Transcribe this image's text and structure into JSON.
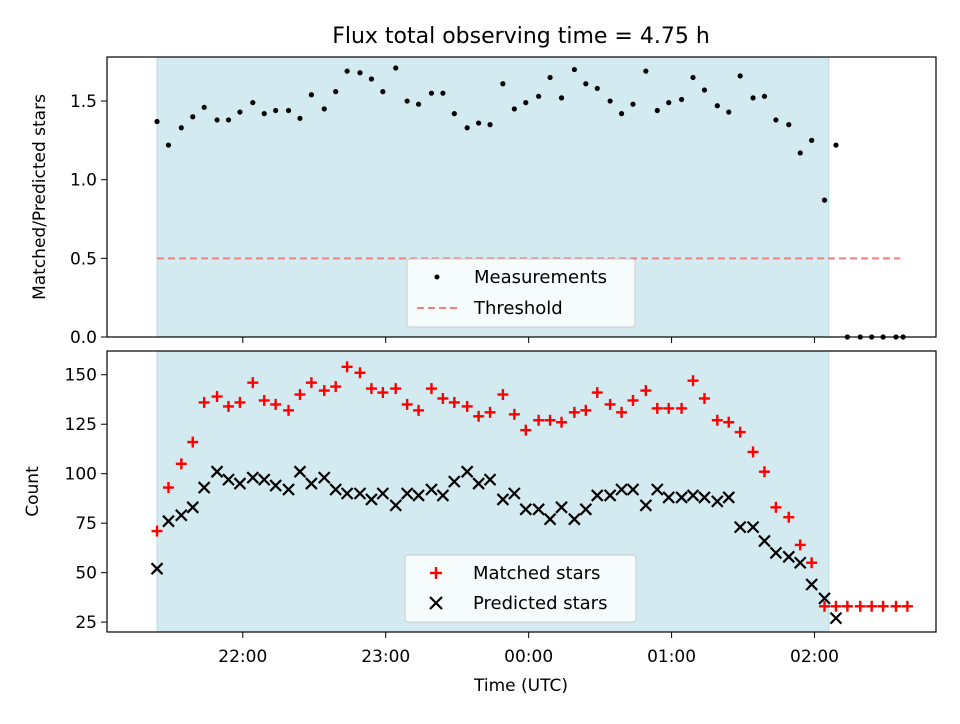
{
  "chart_data": {
    "type": "scatter",
    "title": "Flux total observing time = 4.75 h",
    "xlabel": "Time (UTC)",
    "x_tick_labels": [
      "22:00",
      "23:00",
      "00:00",
      "01:00",
      "02:00"
    ],
    "x_tick_hours": [
      22,
      23,
      24,
      25,
      26
    ],
    "x_range_hours": [
      21.05,
      26.85
    ],
    "shaded_interval_hours": [
      21.4,
      26.1
    ],
    "colors": {
      "shade": "#d3eaf0",
      "shade_edge": "#b9dbe4",
      "threshold": "#f08080",
      "matched": "#ff0000",
      "predicted": "#000000",
      "measurements": "#000000"
    },
    "top_panel": {
      "ylabel": "Matched/Predicted stars",
      "ylim": [
        0,
        1.78
      ],
      "y_ticks": [
        0.0,
        0.5,
        1.0,
        1.5
      ],
      "y_tick_labels": [
        "0.0",
        "0.5",
        "1.0",
        "1.5"
      ],
      "legend": {
        "placement": "lower-center",
        "measurements_label": "Measurements",
        "threshold_label": "Threshold"
      },
      "threshold": {
        "y": 0.5,
        "x": [
          21.4,
          26.6
        ]
      },
      "measurements": [
        [
          21.4,
          1.37
        ],
        [
          21.48,
          1.22
        ],
        [
          21.57,
          1.33
        ],
        [
          21.65,
          1.4
        ],
        [
          21.73,
          1.46
        ],
        [
          21.82,
          1.38
        ],
        [
          21.9,
          1.38
        ],
        [
          21.98,
          1.43
        ],
        [
          22.07,
          1.49
        ],
        [
          22.15,
          1.42
        ],
        [
          22.23,
          1.44
        ],
        [
          22.32,
          1.44
        ],
        [
          22.4,
          1.39
        ],
        [
          22.48,
          1.54
        ],
        [
          22.57,
          1.45
        ],
        [
          22.65,
          1.56
        ],
        [
          22.73,
          1.69
        ],
        [
          22.82,
          1.68
        ],
        [
          22.9,
          1.64
        ],
        [
          22.98,
          1.56
        ],
        [
          23.07,
          1.71
        ],
        [
          23.15,
          1.5
        ],
        [
          23.23,
          1.48
        ],
        [
          23.32,
          1.55
        ],
        [
          23.4,
          1.55
        ],
        [
          23.48,
          1.42
        ],
        [
          23.57,
          1.33
        ],
        [
          23.65,
          1.36
        ],
        [
          23.73,
          1.35
        ],
        [
          23.82,
          1.61
        ],
        [
          23.9,
          1.45
        ],
        [
          23.98,
          1.49
        ],
        [
          24.07,
          1.53
        ],
        [
          24.15,
          1.65
        ],
        [
          24.23,
          1.52
        ],
        [
          24.32,
          1.7
        ],
        [
          24.4,
          1.61
        ],
        [
          24.48,
          1.58
        ],
        [
          24.57,
          1.5
        ],
        [
          24.65,
          1.42
        ],
        [
          24.73,
          1.48
        ],
        [
          24.82,
          1.69
        ],
        [
          24.9,
          1.44
        ],
        [
          24.98,
          1.49
        ],
        [
          25.07,
          1.51
        ],
        [
          25.15,
          1.65
        ],
        [
          25.23,
          1.57
        ],
        [
          25.32,
          1.47
        ],
        [
          25.4,
          1.43
        ],
        [
          25.48,
          1.66
        ],
        [
          25.57,
          1.52
        ],
        [
          25.65,
          1.53
        ],
        [
          25.73,
          1.38
        ],
        [
          25.82,
          1.35
        ],
        [
          25.9,
          1.17
        ],
        [
          25.98,
          1.25
        ],
        [
          26.07,
          0.87
        ],
        [
          26.15,
          1.22
        ],
        [
          26.23,
          0.0
        ],
        [
          26.32,
          0.0
        ],
        [
          26.4,
          0.0
        ],
        [
          26.48,
          0.0
        ],
        [
          26.57,
          0.0
        ],
        [
          26.62,
          0.0
        ]
      ]
    },
    "bottom_panel": {
      "ylabel": "Count",
      "ylim": [
        20,
        162
      ],
      "y_ticks": [
        25,
        50,
        75,
        100,
        125,
        150
      ],
      "y_tick_labels": [
        "25",
        "50",
        "75",
        "100",
        "125",
        "150"
      ],
      "legend": {
        "placement": "lower-center",
        "matched_label": "Matched stars",
        "predicted_label": "Predicted stars"
      },
      "series": [
        {
          "name": "Matched stars",
          "marker": "+",
          "points": [
            [
              21.4,
              71
            ],
            [
              21.48,
              93
            ],
            [
              21.57,
              105
            ],
            [
              21.65,
              116
            ],
            [
              21.73,
              136
            ],
            [
              21.82,
              139
            ],
            [
              21.9,
              134
            ],
            [
              21.98,
              136
            ],
            [
              22.07,
              146
            ],
            [
              22.15,
              137
            ],
            [
              22.23,
              135
            ],
            [
              22.32,
              132
            ],
            [
              22.4,
              140
            ],
            [
              22.48,
              146
            ],
            [
              22.57,
              142
            ],
            [
              22.65,
              144
            ],
            [
              22.73,
              154
            ],
            [
              22.82,
              151
            ],
            [
              22.9,
              143
            ],
            [
              22.98,
              141
            ],
            [
              23.07,
              143
            ],
            [
              23.15,
              135
            ],
            [
              23.23,
              132
            ],
            [
              23.32,
              143
            ],
            [
              23.4,
              138
            ],
            [
              23.48,
              136
            ],
            [
              23.57,
              134
            ],
            [
              23.65,
              129
            ],
            [
              23.73,
              131
            ],
            [
              23.82,
              140
            ],
            [
              23.9,
              130
            ],
            [
              23.98,
              122
            ],
            [
              24.07,
              127
            ],
            [
              24.15,
              127
            ],
            [
              24.23,
              126
            ],
            [
              24.32,
              131
            ],
            [
              24.4,
              132
            ],
            [
              24.48,
              141
            ],
            [
              24.57,
              135
            ],
            [
              24.65,
              131
            ],
            [
              24.73,
              137
            ],
            [
              24.82,
              142
            ],
            [
              24.9,
              133
            ],
            [
              24.98,
              133
            ],
            [
              25.07,
              133
            ],
            [
              25.15,
              147
            ],
            [
              25.23,
              138
            ],
            [
              25.32,
              127
            ],
            [
              25.4,
              126
            ],
            [
              25.48,
              121
            ],
            [
              25.57,
              111
            ],
            [
              25.65,
              101
            ],
            [
              25.73,
              83
            ],
            [
              25.82,
              78
            ],
            [
              25.9,
              64
            ],
            [
              25.98,
              55
            ],
            [
              26.07,
              33
            ],
            [
              26.15,
              33
            ],
            [
              26.23,
              33
            ],
            [
              26.32,
              33
            ],
            [
              26.4,
              33
            ],
            [
              26.48,
              33
            ],
            [
              26.57,
              33
            ],
            [
              26.65,
              33
            ]
          ]
        },
        {
          "name": "Predicted stars",
          "marker": "x",
          "points": [
            [
              21.4,
              52
            ],
            [
              21.48,
              76
            ],
            [
              21.57,
              79
            ],
            [
              21.65,
              83
            ],
            [
              21.73,
              93
            ],
            [
              21.82,
              101
            ],
            [
              21.9,
              97
            ],
            [
              21.98,
              95
            ],
            [
              22.07,
              98
            ],
            [
              22.15,
              97
            ],
            [
              22.23,
              94
            ],
            [
              22.32,
              92
            ],
            [
              22.4,
              101
            ],
            [
              22.48,
              95
            ],
            [
              22.57,
              98
            ],
            [
              22.65,
              92
            ],
            [
              22.73,
              90
            ],
            [
              22.82,
              90
            ],
            [
              22.9,
              87
            ],
            [
              22.98,
              90
            ],
            [
              23.07,
              84
            ],
            [
              23.15,
              90
            ],
            [
              23.23,
              89
            ],
            [
              23.32,
              92
            ],
            [
              23.4,
              89
            ],
            [
              23.48,
              96
            ],
            [
              23.57,
              101
            ],
            [
              23.65,
              95
            ],
            [
              23.73,
              97
            ],
            [
              23.82,
              87
            ],
            [
              23.9,
              90
            ],
            [
              23.98,
              82
            ],
            [
              24.07,
              82
            ],
            [
              24.15,
              77
            ],
            [
              24.23,
              83
            ],
            [
              24.32,
              77
            ],
            [
              24.4,
              82
            ],
            [
              24.48,
              89
            ],
            [
              24.57,
              89
            ],
            [
              24.65,
              92
            ],
            [
              24.73,
              92
            ],
            [
              24.82,
              84
            ],
            [
              24.9,
              92
            ],
            [
              24.98,
              88
            ],
            [
              25.07,
              88
            ],
            [
              25.15,
              89
            ],
            [
              25.23,
              88
            ],
            [
              25.32,
              86
            ],
            [
              25.4,
              88
            ],
            [
              25.48,
              73
            ],
            [
              25.57,
              73
            ],
            [
              25.65,
              66
            ],
            [
              25.73,
              60
            ],
            [
              25.82,
              58
            ],
            [
              25.9,
              55
            ],
            [
              25.98,
              44
            ],
            [
              26.07,
              37
            ],
            [
              26.15,
              27
            ]
          ]
        }
      ]
    }
  }
}
